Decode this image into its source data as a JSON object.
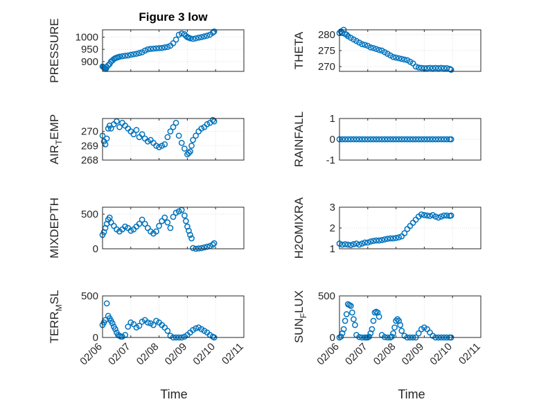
{
  "figure": {
    "title": "Figure 3 low",
    "xlabel": "Time",
    "colors": {
      "marker": "#0072BD",
      "axis": "#262626",
      "grid": "#dedede"
    }
  },
  "chart_data": [
    {
      "type": "scatter",
      "ylabel": "PRESSURE",
      "ylabel_sub": "",
      "ylim": [
        860,
        1030
      ],
      "yticks": [
        900,
        950,
        1000
      ],
      "xlim": [
        "02/06",
        "02/11"
      ],
      "xticks": [],
      "grid": true,
      "x": [
        0,
        0.03,
        0.06,
        0.09,
        0.12,
        0.15,
        0.2,
        0.25,
        0.3,
        0.35,
        0.4,
        0.45,
        0.5,
        0.55,
        0.6,
        0.7,
        0.8,
        0.9,
        1.0,
        1.1,
        1.2,
        1.3,
        1.4,
        1.5,
        1.6,
        1.7,
        1.8,
        1.9,
        2.0,
        2.1,
        2.2,
        2.3,
        2.4,
        2.5,
        2.6,
        2.7,
        2.8,
        2.9,
        2.95,
        3.0,
        3.05,
        3.1,
        3.2,
        3.3,
        3.4,
        3.5,
        3.6,
        3.7,
        3.8,
        3.9,
        3.95
      ],
      "y": [
        880,
        878,
        875,
        872,
        870,
        878,
        885,
        890,
        900,
        905,
        910,
        914,
        916,
        918,
        920,
        922,
        924,
        925,
        928,
        930,
        932,
        935,
        938,
        945,
        950,
        952,
        953,
        954,
        955,
        956,
        958,
        960,
        965,
        975,
        990,
        1010,
        1015,
        1012,
        1005,
        1000,
        998,
        995,
        993,
        995,
        998,
        1000,
        1003,
        1006,
        1010,
        1018,
        1023
      ]
    },
    {
      "type": "scatter",
      "ylabel": "THETA",
      "ylabel_sub": "",
      "ylim": [
        268.5,
        281.5
      ],
      "yticks": [
        270,
        275,
        280
      ],
      "xlim": [
        "02/06",
        "02/11"
      ],
      "xticks": [],
      "grid": true,
      "x": [
        0,
        0.05,
        0.1,
        0.15,
        0.2,
        0.25,
        0.3,
        0.4,
        0.5,
        0.6,
        0.7,
        0.8,
        0.9,
        1.0,
        1.1,
        1.2,
        1.3,
        1.4,
        1.5,
        1.6,
        1.7,
        1.8,
        1.9,
        2.0,
        2.1,
        2.2,
        2.3,
        2.4,
        2.5,
        2.6,
        2.7,
        2.8,
        2.9,
        3.0,
        3.1,
        3.2,
        3.3,
        3.4,
        3.5,
        3.6,
        3.7,
        3.8,
        3.9,
        3.95
      ],
      "y": [
        280.5,
        281,
        280.5,
        281.5,
        280.2,
        280,
        279.5,
        279,
        278.5,
        278,
        277.5,
        277,
        276.8,
        276.5,
        276,
        275.8,
        275.5,
        275.2,
        275,
        274.5,
        274,
        273.5,
        273,
        272.8,
        272.6,
        272.4,
        272.2,
        272,
        271.5,
        271,
        270,
        269.7,
        269.6,
        269.5,
        269.5,
        269.6,
        269.5,
        269.6,
        269.5,
        269.6,
        269.5,
        269.5,
        269.3,
        269
      ]
    },
    {
      "type": "scatter",
      "ylabel": "AIR",
      "ylabel_sub": "T",
      "ylabel_rest": "EMP",
      "ylim": [
        268,
        270.9
      ],
      "yticks": [
        268,
        269,
        270
      ],
      "xlim": [
        "02/06",
        "02/11"
      ],
      "xticks": [],
      "grid": true,
      "x": [
        0,
        0.05,
        0.1,
        0.15,
        0.2,
        0.25,
        0.3,
        0.4,
        0.5,
        0.6,
        0.7,
        0.8,
        0.9,
        1.0,
        1.1,
        1.2,
        1.3,
        1.4,
        1.5,
        1.6,
        1.7,
        1.8,
        1.9,
        2.0,
        2.1,
        2.2,
        2.3,
        2.4,
        2.5,
        2.6,
        2.7,
        2.8,
        2.9,
        3.0,
        3.05,
        3.1,
        3.15,
        3.2,
        3.3,
        3.4,
        3.5,
        3.6,
        3.7,
        3.8,
        3.9,
        3.95
      ],
      "y": [
        269.7,
        269.3,
        269.1,
        269.5,
        270.2,
        270.4,
        270.2,
        270.5,
        270.7,
        270.3,
        270.6,
        270.4,
        270.2,
        270.0,
        269.8,
        270.1,
        269.6,
        269.8,
        269.5,
        269.3,
        269.4,
        269.2,
        269.0,
        268.9,
        269.0,
        269.1,
        269.6,
        270.0,
        270.3,
        270.6,
        269.7,
        269.2,
        268.8,
        268.4,
        268.5,
        268.6,
        269.0,
        269.4,
        269.7,
        270.0,
        270.2,
        270.3,
        270.5,
        270.6,
        270.8,
        270.7
      ]
    },
    {
      "type": "scatter",
      "ylabel": "RAINFALL",
      "ylabel_sub": "",
      "ylim": [
        -1,
        1
      ],
      "yticks": [
        -1,
        0,
        1
      ],
      "xlim": [
        "02/06",
        "02/11"
      ],
      "xticks": [],
      "grid": true,
      "x": [
        0,
        0.1,
        0.2,
        0.3,
        0.4,
        0.5,
        0.6,
        0.7,
        0.8,
        0.9,
        1.0,
        1.1,
        1.2,
        1.3,
        1.4,
        1.5,
        1.6,
        1.7,
        1.8,
        1.9,
        2.0,
        2.1,
        2.2,
        2.3,
        2.4,
        2.5,
        2.6,
        2.7,
        2.8,
        2.9,
        3.0,
        3.1,
        3.2,
        3.3,
        3.4,
        3.5,
        3.6,
        3.7,
        3.8,
        3.9,
        3.95
      ],
      "y": [
        0,
        0,
        0,
        0,
        0,
        0,
        0,
        0,
        0,
        0,
        0,
        0,
        0,
        0,
        0,
        0,
        0,
        0,
        0,
        0,
        0,
        0,
        0,
        0,
        0,
        0,
        0,
        0,
        0,
        0,
        0,
        0,
        0,
        0,
        0,
        0,
        0,
        0,
        0,
        0,
        0
      ]
    },
    {
      "type": "scatter",
      "ylabel": "MIXDEPTH",
      "ylabel_sub": "",
      "ylim": [
        0,
        600
      ],
      "yticks": [
        0,
        500
      ],
      "xlim": [
        "02/06",
        "02/11"
      ],
      "xticks": [],
      "grid": true,
      "x": [
        0,
        0.05,
        0.1,
        0.15,
        0.2,
        0.25,
        0.3,
        0.4,
        0.5,
        0.6,
        0.7,
        0.8,
        0.9,
        1.0,
        1.1,
        1.2,
        1.3,
        1.4,
        1.5,
        1.6,
        1.7,
        1.8,
        1.9,
        2.0,
        2.1,
        2.2,
        2.3,
        2.4,
        2.5,
        2.6,
        2.7,
        2.8,
        2.9,
        2.95,
        3.0,
        3.05,
        3.1,
        3.15,
        3.2,
        3.3,
        3.4,
        3.5,
        3.6,
        3.7,
        3.8,
        3.9,
        3.95
      ],
      "y": [
        200,
        240,
        300,
        360,
        420,
        450,
        380,
        330,
        280,
        250,
        280,
        320,
        300,
        260,
        280,
        320,
        360,
        420,
        360,
        300,
        250,
        220,
        250,
        330,
        400,
        450,
        380,
        300,
        460,
        520,
        540,
        560,
        480,
        400,
        320,
        260,
        200,
        150,
        10,
        0,
        5,
        10,
        20,
        30,
        40,
        60,
        80
      ]
    },
    {
      "type": "scatter",
      "ylabel": "H2OMIXRA",
      "ylabel_sub": "",
      "ylim": [
        1,
        3
      ],
      "yticks": [
        1,
        2,
        3
      ],
      "xlim": [
        "02/06",
        "02/11"
      ],
      "xticks": [],
      "grid": true,
      "x": [
        0,
        0.1,
        0.2,
        0.3,
        0.4,
        0.5,
        0.6,
        0.7,
        0.8,
        0.9,
        1.0,
        1.1,
        1.2,
        1.3,
        1.4,
        1.5,
        1.6,
        1.7,
        1.8,
        1.9,
        2.0,
        2.1,
        2.2,
        2.3,
        2.4,
        2.5,
        2.6,
        2.7,
        2.8,
        2.9,
        3.0,
        3.1,
        3.2,
        3.3,
        3.4,
        3.5,
        3.6,
        3.7,
        3.8,
        3.9,
        3.95
      ],
      "y": [
        1.25,
        1.2,
        1.22,
        1.2,
        1.18,
        1.22,
        1.25,
        1.2,
        1.25,
        1.3,
        1.3,
        1.35,
        1.38,
        1.4,
        1.4,
        1.42,
        1.45,
        1.48,
        1.5,
        1.5,
        1.52,
        1.55,
        1.6,
        1.75,
        1.95,
        2.1,
        2.25,
        2.4,
        2.55,
        2.65,
        2.62,
        2.6,
        2.58,
        2.62,
        2.55,
        2.5,
        2.55,
        2.6,
        2.6,
        2.58,
        2.6
      ]
    },
    {
      "type": "scatter",
      "ylabel": "TERR",
      "ylabel_sub": "M",
      "ylabel_rest": "SL",
      "ylim": [
        0,
        500
      ],
      "yticks": [
        0,
        500
      ],
      "xlim": [
        "02/06",
        "02/11"
      ],
      "xticks": [
        "02/06",
        "02/07",
        "02/08",
        "02/09",
        "02/10",
        "02/11"
      ],
      "grid": true,
      "x": [
        0,
        0.05,
        0.1,
        0.15,
        0.2,
        0.25,
        0.3,
        0.35,
        0.4,
        0.45,
        0.5,
        0.55,
        0.6,
        0.65,
        0.7,
        0.8,
        0.9,
        1.0,
        1.1,
        1.2,
        1.3,
        1.4,
        1.5,
        1.6,
        1.7,
        1.8,
        1.9,
        2.0,
        2.1,
        2.2,
        2.3,
        2.4,
        2.5,
        2.6,
        2.7,
        2.8,
        2.9,
        3.0,
        3.1,
        3.2,
        3.3,
        3.4,
        3.5,
        3.6,
        3.7,
        3.8,
        3.9,
        3.95
      ],
      "y": [
        150,
        180,
        210,
        410,
        260,
        230,
        200,
        170,
        130,
        100,
        60,
        30,
        20,
        10,
        10,
        30,
        130,
        180,
        160,
        120,
        140,
        190,
        210,
        180,
        170,
        150,
        200,
        180,
        150,
        120,
        80,
        20,
        0,
        0,
        0,
        0,
        10,
        30,
        60,
        90,
        110,
        120,
        100,
        80,
        60,
        30,
        10,
        0
      ]
    },
    {
      "type": "scatter",
      "ylabel": "SUN",
      "ylabel_sub": "F",
      "ylabel_rest": "LUX",
      "ylim": [
        0,
        500
      ],
      "yticks": [
        0,
        500
      ],
      "xlim": [
        "02/06",
        "02/11"
      ],
      "xticks": [
        "02/06",
        "02/07",
        "02/08",
        "02/09",
        "02/10",
        "02/11"
      ],
      "grid": true,
      "x": [
        0,
        0.05,
        0.1,
        0.15,
        0.2,
        0.25,
        0.3,
        0.35,
        0.4,
        0.45,
        0.5,
        0.55,
        0.6,
        0.7,
        0.8,
        0.9,
        0.95,
        1.0,
        1.05,
        1.1,
        1.15,
        1.2,
        1.25,
        1.3,
        1.35,
        1.4,
        1.5,
        1.6,
        1.7,
        1.8,
        1.85,
        1.9,
        1.95,
        2.0,
        2.05,
        2.1,
        2.15,
        2.2,
        2.3,
        2.4,
        2.5,
        2.6,
        2.7,
        2.8,
        2.9,
        3.0,
        3.1,
        3.2,
        3.3,
        3.4,
        3.5,
        3.6,
        3.7,
        3.8,
        3.9,
        3.95
      ],
      "y": [
        0,
        10,
        50,
        100,
        200,
        280,
        400,
        390,
        380,
        300,
        220,
        150,
        30,
        5,
        0,
        0,
        0,
        0,
        10,
        50,
        100,
        200,
        300,
        310,
        300,
        250,
        30,
        5,
        0,
        0,
        10,
        50,
        120,
        200,
        220,
        200,
        150,
        80,
        20,
        0,
        0,
        0,
        0,
        50,
        100,
        120,
        100,
        60,
        20,
        0,
        0,
        0,
        0,
        0,
        0,
        0
      ]
    }
  ]
}
